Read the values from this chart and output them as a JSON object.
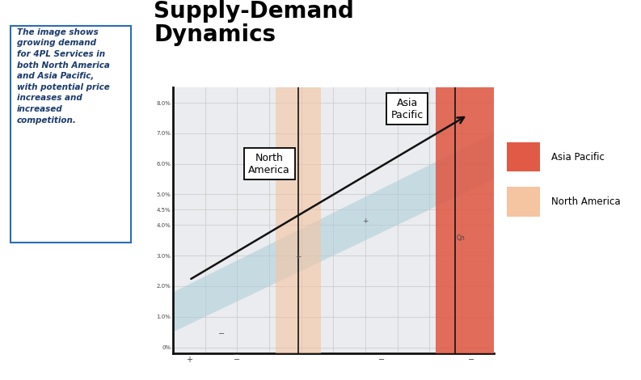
{
  "title_line1": "Supply-Demand",
  "title_line2": "Dynamics",
  "title_fontsize": 20,
  "sidebar_text": "The image shows\ngrowing demand\nfor 4PL Services in\nboth North America\nand Asia Pacific,\nwith potential price\nincreases and\nincreased\ncompetition.",
  "sidebar_border": "#2a6db5",
  "sidebar_text_color": "#1a3a6b",
  "axis_color": "#111111",
  "grid_color": "#c8c8c8",
  "asia_pacific_color": "#e05a45",
  "north_america_color": "#f5c4a0",
  "band_color": "#aaccd8",
  "arrow_color": "#111111",
  "label_na": "North\nAmerica",
  "label_ap": "Asia\nPacific",
  "legend_ap": "Asia Pacific",
  "legend_na": "North America",
  "y_tick_positions": [
    0,
    1,
    2,
    3,
    4,
    4.5,
    5,
    6,
    7,
    8
  ],
  "y_tick_labels": [
    "0%",
    "1.0%",
    "2.0%",
    "3.0%",
    "4.0%",
    "4.5%",
    "5.0%",
    "6.0%",
    "7.0%",
    "8.0%"
  ],
  "chart_bg": "#eaecef"
}
